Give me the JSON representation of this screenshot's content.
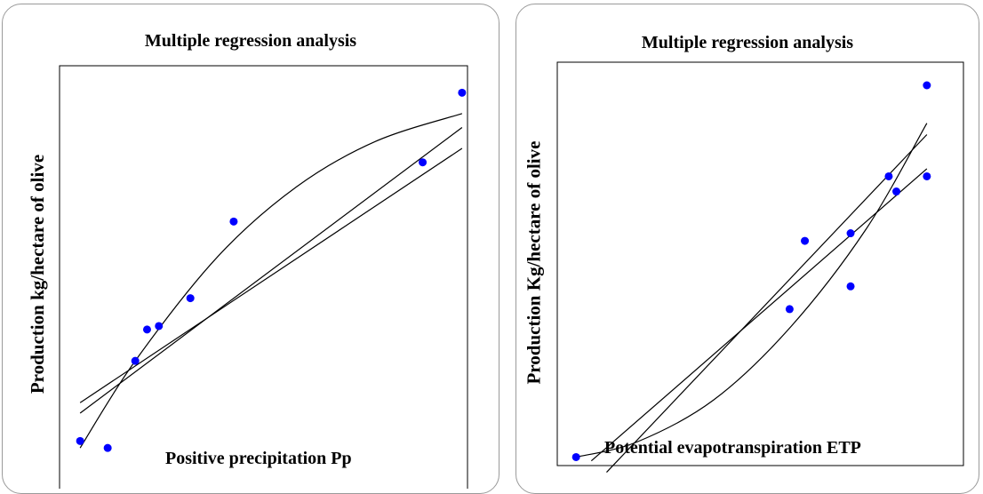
{
  "chart_data": [
    {
      "type": "scatter",
      "title": "Multiple regression analysis",
      "xlabel": "Positive precipitation  Pp",
      "ylabel": "Production kg/hectare of olive",
      "xlim": [
        0,
        100
      ],
      "ylim": [
        0,
        100
      ],
      "grid": false,
      "legend": "none",
      "point_color": "#0000ff",
      "line_color": "#000000",
      "series": [
        {
          "points": [
            [
              5,
              4
            ],
            [
              12,
              2
            ],
            [
              19,
              27
            ],
            [
              22,
              36
            ],
            [
              25,
              37
            ],
            [
              33,
              45
            ],
            [
              44,
              67
            ],
            [
              92,
              84
            ],
            [
              102,
              104
            ]
          ]
        }
      ],
      "fits": [
        {
          "kind": "linear",
          "x": [
            5,
            102
          ],
          "y": [
            15,
            88
          ]
        },
        {
          "kind": "quadratic",
          "x": [
            5,
            19,
            40,
            60,
            80,
            102
          ],
          "y": [
            2,
            27,
            57,
            77,
            90,
            98
          ]
        },
        {
          "kind": "linear-steep",
          "x": [
            5,
            102
          ],
          "y": [
            12,
            94
          ]
        }
      ]
    },
    {
      "type": "scatter",
      "title": "Multiple regression analysis",
      "xlabel": "Potential evapotranspiration  ETP",
      "ylabel": "Production  Kg/hectare of olive",
      "xlim": [
        0,
        100
      ],
      "ylim": [
        0,
        100
      ],
      "grid": false,
      "legend": "none",
      "point_color": "#0000ff",
      "line_color": "#000000",
      "series": [
        {
          "points": [
            [
              4,
              2
            ],
            [
              60,
              41
            ],
            [
              64,
              59
            ],
            [
              76,
              47
            ],
            [
              76,
              61
            ],
            [
              86,
              76
            ],
            [
              88,
              72
            ],
            [
              96,
              76
            ],
            [
              96,
              100
            ]
          ]
        }
      ],
      "fits": [
        {
          "kind": "linear-steep",
          "x": [
            12,
            96
          ],
          "y": [
            -2,
            87
          ]
        },
        {
          "kind": "linear",
          "x": [
            8,
            96
          ],
          "y": [
            1,
            78
          ]
        },
        {
          "kind": "quadratic",
          "x": [
            4,
            20,
            40,
            60,
            80,
            96
          ],
          "y": [
            2,
            6,
            17,
            36,
            62,
            90
          ]
        }
      ]
    }
  ]
}
